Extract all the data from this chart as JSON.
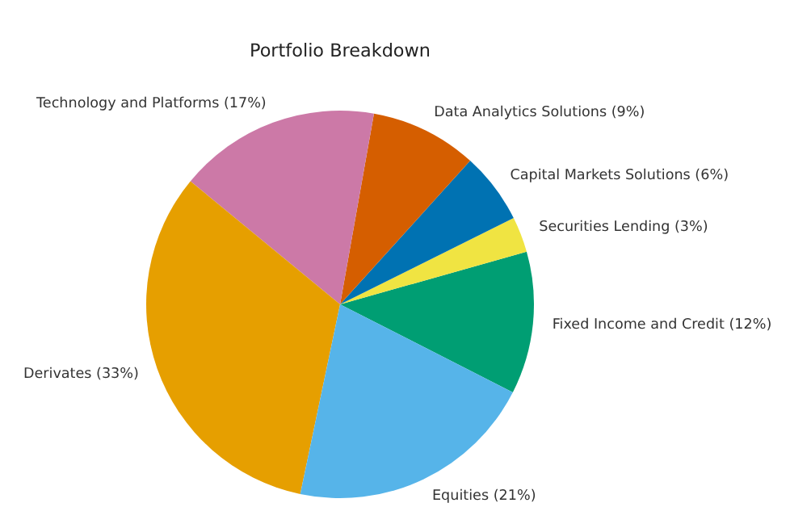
{
  "chart_data": {
    "type": "pie",
    "title": "Portfolio Breakdown",
    "categories": [
      "Fixed Income and Credit (12%)",
      "Securities Lending (3%)",
      "Capital Markets Solutions (6%)",
      "Data Analytics Solutions (9%)",
      "Technology and Platforms (17%)",
      "Derivates (33%)",
      "Equities (21%)"
    ],
    "values": [
      12,
      3,
      6,
      9,
      17,
      33,
      21
    ],
    "colors": [
      "#009e73",
      "#f0e442",
      "#0072b2",
      "#d55e00",
      "#cc79a7",
      "#e69f00",
      "#56b4e9"
    ]
  }
}
